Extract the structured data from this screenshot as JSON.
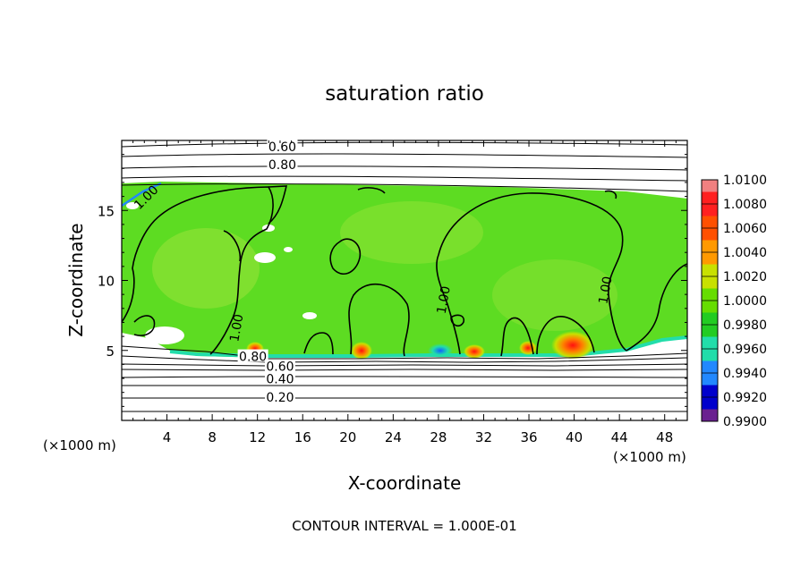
{
  "chart_data": {
    "type": "heatmap",
    "title": "saturation ratio",
    "xlabel": "X-coordinate",
    "ylabel": "Z-coordinate",
    "x_scale_note_left": "(×1000 m)",
    "x_scale_note_right": "(×1000 m)",
    "footer": "CONTOUR INTERVAL = 1.000E-01",
    "xlim": [
      0,
      50
    ],
    "ylim": [
      0,
      20
    ],
    "x_ticks": [
      {
        "value": 4,
        "label": "4"
      },
      {
        "value": 8,
        "label": "8"
      },
      {
        "value": 12,
        "label": "12"
      },
      {
        "value": 16,
        "label": "16"
      },
      {
        "value": 20,
        "label": "20"
      },
      {
        "value": 24,
        "label": "24"
      },
      {
        "value": 28,
        "label": "28"
      },
      {
        "value": 32,
        "label": "32"
      },
      {
        "value": 36,
        "label": "36"
      },
      {
        "value": 40,
        "label": "40"
      },
      {
        "value": 44,
        "label": "44"
      },
      {
        "value": 48,
        "label": "48"
      }
    ],
    "y_ticks": [
      {
        "value": 5,
        "label": "5"
      },
      {
        "value": 10,
        "label": "10"
      },
      {
        "value": 15,
        "label": "15"
      }
    ],
    "colorbar": {
      "levels": [
        "1.0100",
        "1.0080",
        "1.0060",
        "1.0040",
        "1.0020",
        "1.0000",
        "0.9980",
        "0.9960",
        "0.9940",
        "0.9920",
        "0.9900"
      ],
      "colors": [
        "#f08080",
        "#ff2020",
        "#ff5000",
        "#ff9900",
        "#c8e000",
        "#66dd00",
        "#22cc22",
        "#22ddaa",
        "#2288ff",
        "#0000cc",
        "#6a2090"
      ]
    },
    "contour_labels": [
      {
        "text": "0.60",
        "x": 14.2,
        "y": 19.5
      },
      {
        "text": "0.80",
        "x": 14.2,
        "y": 18.2
      },
      {
        "text": "1.00",
        "x": 2.2,
        "y": 15.9
      },
      {
        "text": "1.00",
        "x": 10.2,
        "y": 6.6
      },
      {
        "text": "0.80",
        "x": 11.6,
        "y": 4.5
      },
      {
        "text": "0.60",
        "x": 14.0,
        "y": 3.8
      },
      {
        "text": "0.40",
        "x": 14.0,
        "y": 2.9
      },
      {
        "text": "0.20",
        "x": 14.0,
        "y": 1.6
      },
      {
        "text": "1.00",
        "x": 28.5,
        "y": 8.6
      },
      {
        "text": "1.00",
        "x": 42.8,
        "y": 9.3
      }
    ],
    "regions": {
      "moist_layer_bottom_z": 4.6,
      "moist_layer_top_z": 16.6,
      "value_in_layer_approx": 1.0
    }
  }
}
